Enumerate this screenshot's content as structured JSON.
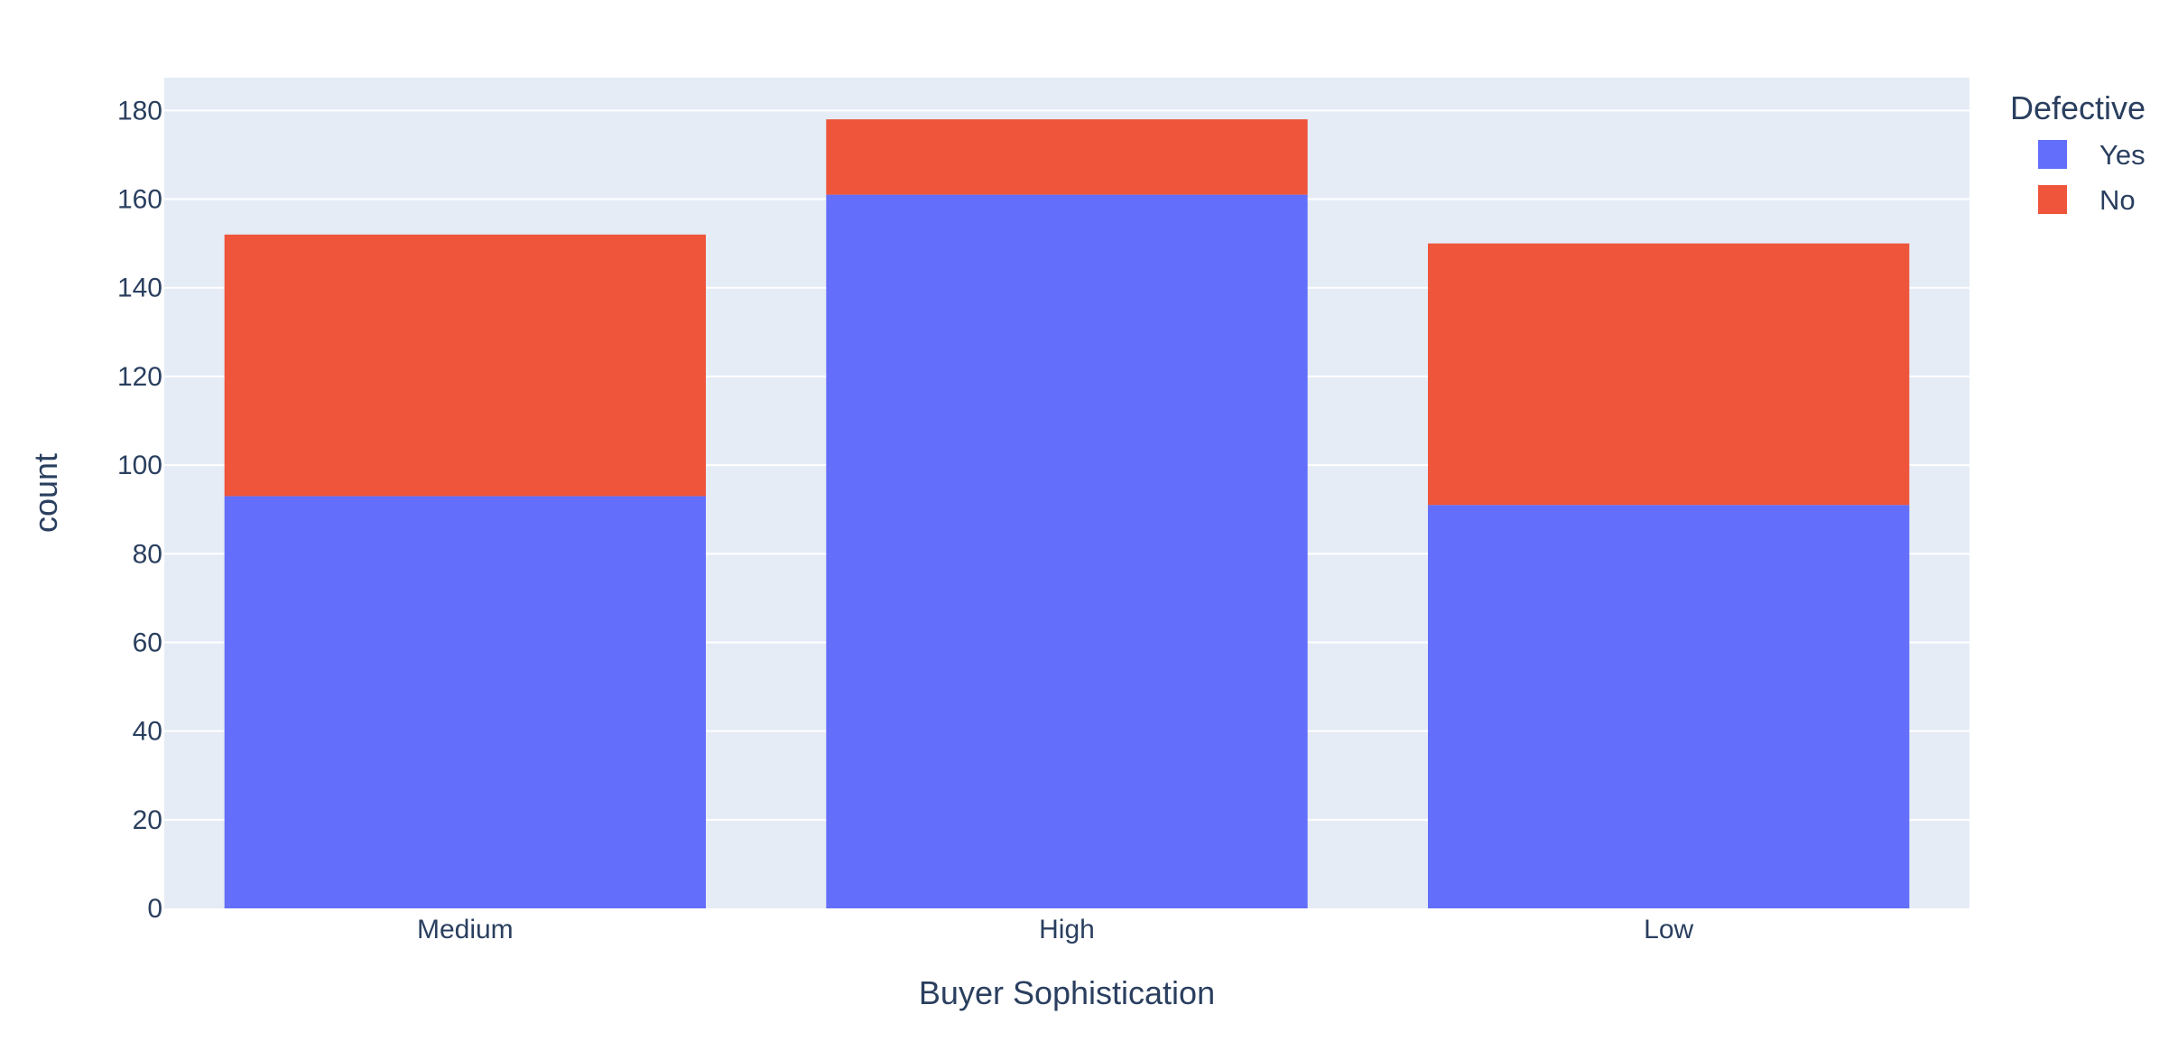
{
  "chart_data": {
    "type": "bar",
    "barmode": "stack",
    "categories": [
      "Medium",
      "High",
      "Low"
    ],
    "series": [
      {
        "name": "Yes",
        "values": [
          93,
          161,
          91
        ],
        "color": "#636efa"
      },
      {
        "name": "No",
        "values": [
          59,
          17,
          59
        ],
        "color": "#ef553b"
      }
    ],
    "xlabel": "Buyer Sophistication",
    "ylabel": "count",
    "ylim": [
      0,
      187.4
    ],
    "yticks": [
      0,
      20,
      40,
      60,
      80,
      100,
      120,
      140,
      160,
      180
    ],
    "grid": true,
    "legend": {
      "title": "Defective",
      "placement": "top-right"
    },
    "colors": {
      "plot_bg": "#e5ecf6",
      "grid": "#ffffff",
      "text": "#2a3f5f"
    }
  }
}
